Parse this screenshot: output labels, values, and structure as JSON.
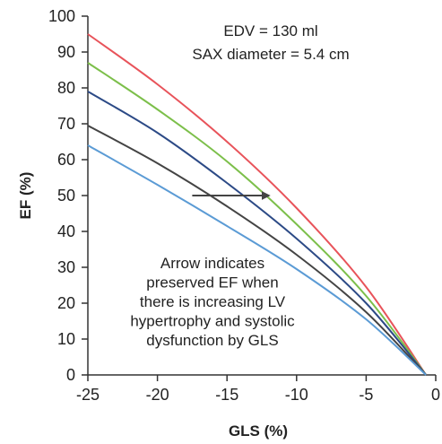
{
  "chart_data": {
    "type": "line",
    "xlabel": "GLS (%)",
    "ylabel": "EF (%)",
    "xlim": [
      -25,
      0
    ],
    "ylim": [
      0,
      100
    ],
    "x_ticks": [
      -25,
      -20,
      -15,
      -10,
      -5,
      0
    ],
    "y_ticks": [
      0,
      10,
      20,
      30,
      40,
      50,
      60,
      70,
      80,
      90,
      100
    ],
    "grid": false,
    "annotation_top": [
      "EDV = 130 ml",
      "SAX diameter = 5.4 cm"
    ],
    "annotation_bottom": [
      "Arrow indicates",
      "preserved EF when",
      "there is increasing LV",
      "hypertrophy and systolic",
      "dysfunction by GLS"
    ],
    "arrow": {
      "from": [
        -17.5,
        50
      ],
      "to": [
        -12,
        50
      ]
    },
    "series": [
      {
        "color": "#e8535a",
        "x": [
          -25,
          -20,
          -15,
          -10,
          -5,
          -0.7
        ],
        "y": [
          95,
          81,
          65,
          46.5,
          24.5,
          0
        ]
      },
      {
        "color": "#7cbf4a",
        "x": [
          -25,
          -20,
          -15,
          -10,
          -5,
          -0.7
        ],
        "y": [
          87,
          74,
          59.5,
          42,
          22,
          0
        ]
      },
      {
        "color": "#2c4a86",
        "x": [
          -25,
          -20,
          -15,
          -10,
          -5,
          -0.7
        ],
        "y": [
          79,
          67.5,
          53.5,
          38,
          20,
          0
        ]
      },
      {
        "color": "#444444",
        "x": [
          -25,
          -20,
          -15,
          -10,
          -5,
          -0.7
        ],
        "y": [
          69.5,
          59,
          47,
          33.5,
          17.5,
          0
        ]
      },
      {
        "color": "#5b9bd5",
        "x": [
          -25,
          -20,
          -15,
          -10,
          -5,
          -0.7
        ],
        "y": [
          64,
          53,
          41.5,
          29.5,
          15.5,
          0
        ]
      }
    ]
  }
}
